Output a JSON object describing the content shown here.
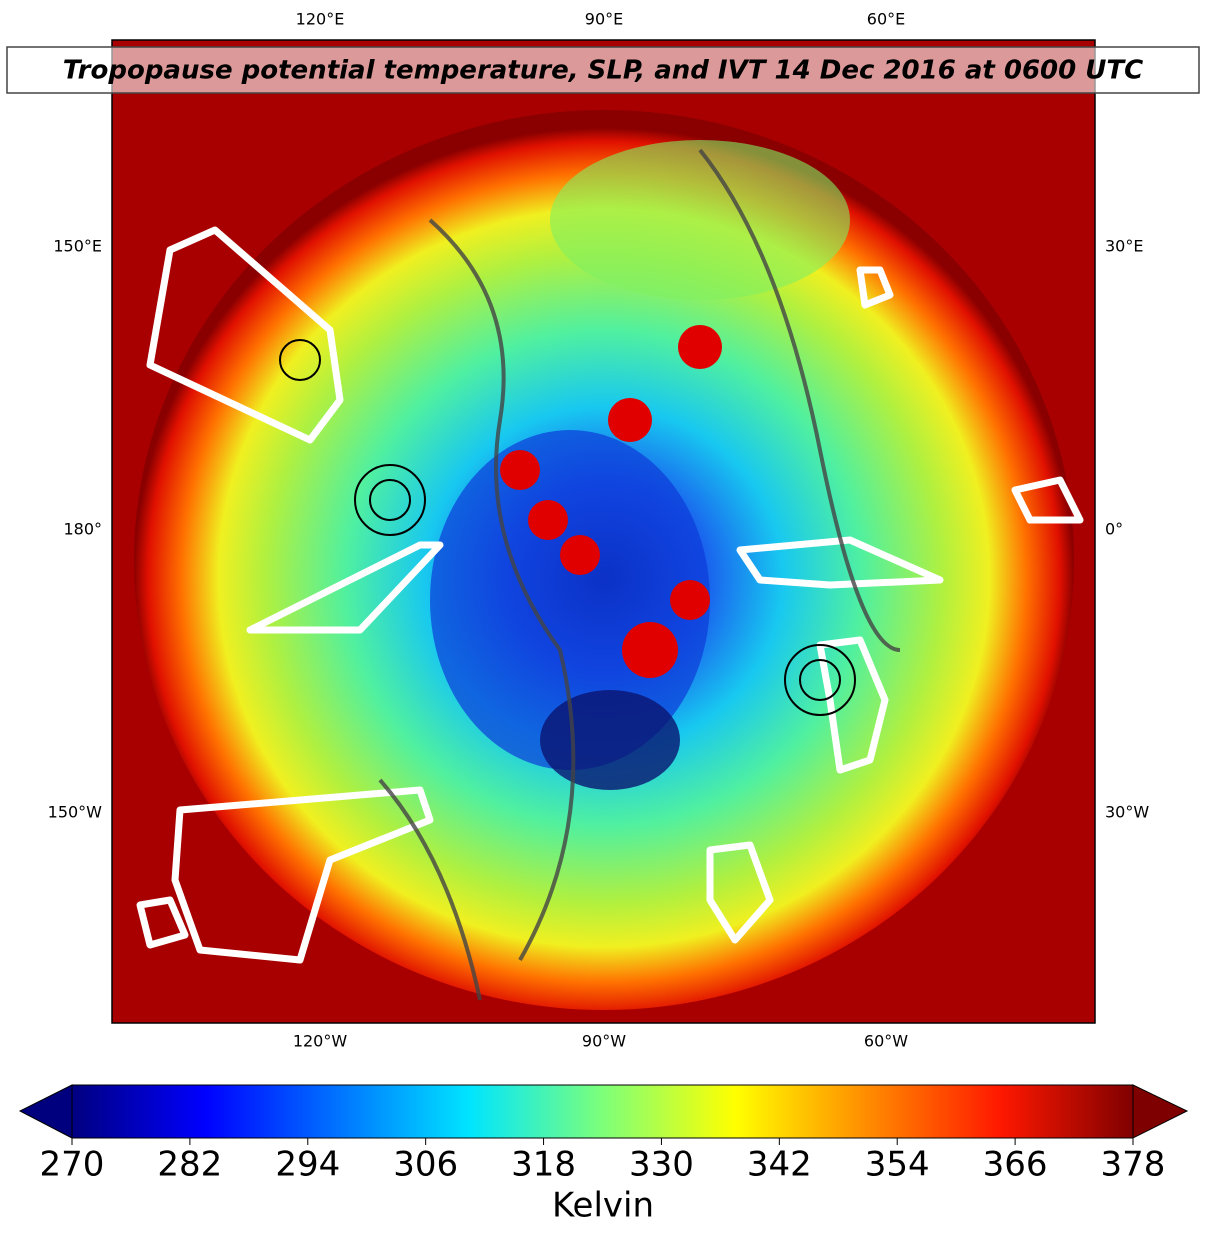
{
  "title": "Tropopause potential temperature, SLP, and IVT 14 Dec 2016 at 0600 UTC",
  "map": {
    "lon_labels": {
      "top": [
        "120°E",
        "90°E",
        "60°E"
      ],
      "left": [
        "150°E",
        "180°",
        "150°W"
      ],
      "right": [
        "30°E",
        "0°",
        "30°W"
      ],
      "bottom": [
        "120°W",
        "90°W",
        "60°W"
      ]
    }
  },
  "colorbar": {
    "label": "Kelvin",
    "lim": [
      270,
      378
    ],
    "ticks": [
      270,
      282,
      294,
      306,
      318,
      330,
      342,
      354,
      366,
      378
    ]
  }
}
